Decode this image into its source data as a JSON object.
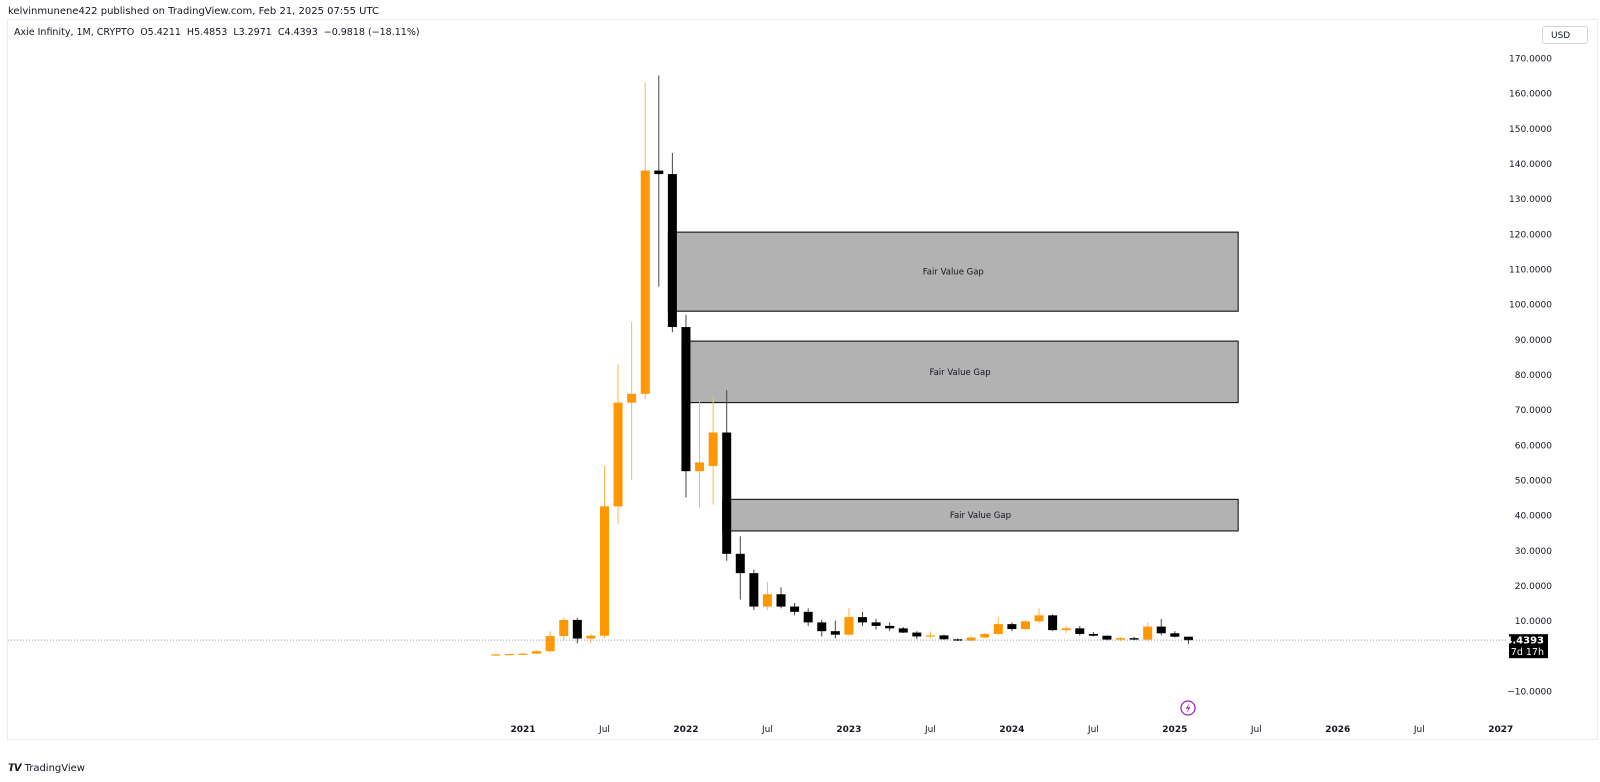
{
  "header": {
    "publish_line": "kelvinmunene422 published on TradingView.com, Feb 21, 2025 07:55 UTC"
  },
  "legend": {
    "symbol": "Axie Infinity, 1M, CRYPTO",
    "open": "O5.4211",
    "high": "H5.4853",
    "low": "L3.2971",
    "close": "C4.4393",
    "change": "−0.9818 (−18.11%)"
  },
  "currency_button": "USD",
  "last_price": {
    "value_label": "4.4393",
    "countdown": "7d 17h",
    "value": 4.4393
  },
  "footer": {
    "brand": "TradingView"
  },
  "colors": {
    "up": "#ff9800",
    "down": "#000000",
    "zone_fill": "#b2b2b2",
    "zone_border": "#000000"
  },
  "chart_data": {
    "type": "candlestick",
    "interval": "1M",
    "y_axis_labels": [
      "170.0000",
      "160.0000",
      "150.0000",
      "140.0000",
      "130.0000",
      "120.0000",
      "110.0000",
      "100.0000",
      "90.0000",
      "80.0000",
      "70.0000",
      "60.0000",
      "50.0000",
      "40.0000",
      "30.0000",
      "20.0000",
      "10.0000",
      "−10.0000"
    ],
    "y_axis_values": [
      170,
      160,
      150,
      140,
      130,
      120,
      110,
      100,
      90,
      80,
      70,
      60,
      50,
      40,
      30,
      20,
      10,
      -10
    ],
    "ylim": [
      -14,
      174
    ],
    "x_axis_labels": [
      "2021",
      "Jul",
      "2022",
      "Jul",
      "2023",
      "Jul",
      "2024",
      "Jul",
      "2025",
      "Jul",
      "2026",
      "Jul",
      "2027"
    ],
    "x_axis_months": [
      "2021-01",
      "2021-07",
      "2022-01",
      "2022-07",
      "2023-01",
      "2023-07",
      "2024-01",
      "2024-07",
      "2025-01",
      "2025-07",
      "2026-01",
      "2026-07",
      "2027-01"
    ],
    "fair_value_gaps": [
      {
        "label": "Fair Value Gap",
        "start": "2021-12",
        "end": "2025-05",
        "top": 120.5,
        "bottom": 98
      },
      {
        "label": "Fair Value Gap",
        "start": "2022-01",
        "end": "2025-05",
        "top": 89.5,
        "bottom": 72
      },
      {
        "label": "Fair Value Gap",
        "start": "2022-04",
        "end": "2025-05",
        "top": 44.5,
        "bottom": 35.5
      }
    ],
    "candles": [
      {
        "date": "2020-11",
        "o": 0.3,
        "h": 0.6,
        "l": 0.2,
        "c": 0.4
      },
      {
        "date": "2020-12",
        "o": 0.4,
        "h": 0.6,
        "l": 0.3,
        "c": 0.5
      },
      {
        "date": "2021-01",
        "o": 0.5,
        "h": 0.8,
        "l": 0.4,
        "c": 0.6
      },
      {
        "date": "2021-02",
        "o": 0.6,
        "h": 1.5,
        "l": 0.5,
        "c": 1.3
      },
      {
        "date": "2021-03",
        "o": 1.3,
        "h": 7.0,
        "l": 1.0,
        "c": 5.6
      },
      {
        "date": "2021-04",
        "o": 5.6,
        "h": 11.0,
        "l": 4.5,
        "c": 10.2
      },
      {
        "date": "2021-05",
        "o": 10.2,
        "h": 10.8,
        "l": 3.5,
        "c": 4.9
      },
      {
        "date": "2021-06",
        "o": 4.9,
        "h": 6.3,
        "l": 3.5,
        "c": 5.7
      },
      {
        "date": "2021-07",
        "o": 5.7,
        "h": 54.0,
        "l": 5.0,
        "c": 42.5
      },
      {
        "date": "2021-08",
        "o": 42.5,
        "h": 83.0,
        "l": 37.5,
        "c": 72.0
      },
      {
        "date": "2021-09",
        "o": 72.0,
        "h": 95.0,
        "l": 50.0,
        "c": 74.5
      },
      {
        "date": "2021-10",
        "o": 74.5,
        "h": 163.0,
        "l": 73.0,
        "c": 138.0
      },
      {
        "date": "2021-11",
        "o": 138.0,
        "h": 165.0,
        "l": 105.0,
        "c": 137.0
      },
      {
        "date": "2021-12",
        "o": 137.0,
        "h": 143.0,
        "l": 92.0,
        "c": 93.5
      },
      {
        "date": "2022-01",
        "o": 93.5,
        "h": 97.0,
        "l": 45.0,
        "c": 52.5
      },
      {
        "date": "2022-02",
        "o": 52.5,
        "h": 73.0,
        "l": 42.0,
        "c": 55.0
      },
      {
        "date": "2022-03",
        "o": 54.0,
        "h": 73.5,
        "l": 43.0,
        "c": 63.5
      },
      {
        "date": "2022-04",
        "o": 63.5,
        "h": 75.5,
        "l": 27.0,
        "c": 29.0
      },
      {
        "date": "2022-05",
        "o": 29.0,
        "h": 34.0,
        "l": 16.0,
        "c": 23.5
      },
      {
        "date": "2022-06",
        "o": 23.5,
        "h": 24.5,
        "l": 13.0,
        "c": 14.0
      },
      {
        "date": "2022-07",
        "o": 14.0,
        "h": 21.0,
        "l": 13.0,
        "c": 17.5
      },
      {
        "date": "2022-08",
        "o": 17.5,
        "h": 19.5,
        "l": 13.5,
        "c": 14.0
      },
      {
        "date": "2022-09",
        "o": 14.0,
        "h": 15.0,
        "l": 11.5,
        "c": 12.5
      },
      {
        "date": "2022-10",
        "o": 12.5,
        "h": 13.5,
        "l": 8.5,
        "c": 9.5
      },
      {
        "date": "2022-11",
        "o": 9.5,
        "h": 10.2,
        "l": 5.5,
        "c": 7.0
      },
      {
        "date": "2022-12",
        "o": 7.0,
        "h": 10.0,
        "l": 5.0,
        "c": 6.0
      },
      {
        "date": "2023-01",
        "o": 6.0,
        "h": 13.5,
        "l": 5.8,
        "c": 11.0
      },
      {
        "date": "2023-02",
        "o": 11.0,
        "h": 12.5,
        "l": 8.5,
        "c": 9.5
      },
      {
        "date": "2023-03",
        "o": 9.5,
        "h": 10.5,
        "l": 7.5,
        "c": 8.5
      },
      {
        "date": "2023-04",
        "o": 8.5,
        "h": 9.5,
        "l": 7.0,
        "c": 7.8
      },
      {
        "date": "2023-05",
        "o": 7.8,
        "h": 8.2,
        "l": 6.5,
        "c": 6.6
      },
      {
        "date": "2023-06",
        "o": 6.6,
        "h": 7.0,
        "l": 4.8,
        "c": 5.5
      },
      {
        "date": "2023-07",
        "o": 5.5,
        "h": 7.0,
        "l": 5.0,
        "c": 5.8
      },
      {
        "date": "2023-08",
        "o": 5.8,
        "h": 6.0,
        "l": 4.5,
        "c": 4.7
      },
      {
        "date": "2023-09",
        "o": 4.7,
        "h": 4.9,
        "l": 4.2,
        "c": 4.3
      },
      {
        "date": "2023-10",
        "o": 4.3,
        "h": 5.5,
        "l": 4.1,
        "c": 5.2
      },
      {
        "date": "2023-11",
        "o": 5.2,
        "h": 6.5,
        "l": 5.0,
        "c": 6.2
      },
      {
        "date": "2023-12",
        "o": 6.2,
        "h": 11.0,
        "l": 6.0,
        "c": 9.0
      },
      {
        "date": "2024-01",
        "o": 9.0,
        "h": 9.5,
        "l": 7.0,
        "c": 7.6
      },
      {
        "date": "2024-02",
        "o": 7.6,
        "h": 10.0,
        "l": 7.3,
        "c": 9.8
      },
      {
        "date": "2024-03",
        "o": 9.8,
        "h": 13.5,
        "l": 9.2,
        "c": 11.5
      },
      {
        "date": "2024-04",
        "o": 11.5,
        "h": 11.8,
        "l": 7.0,
        "c": 7.3
      },
      {
        "date": "2024-05",
        "o": 7.3,
        "h": 8.5,
        "l": 6.5,
        "c": 7.8
      },
      {
        "date": "2024-06",
        "o": 7.8,
        "h": 8.5,
        "l": 5.8,
        "c": 6.2
      },
      {
        "date": "2024-07",
        "o": 6.2,
        "h": 6.8,
        "l": 5.5,
        "c": 5.7
      },
      {
        "date": "2024-08",
        "o": 5.7,
        "h": 5.8,
        "l": 4.3,
        "c": 4.6
      },
      {
        "date": "2024-09",
        "o": 4.6,
        "h": 5.3,
        "l": 4.2,
        "c": 5.0
      },
      {
        "date": "2024-10",
        "o": 5.0,
        "h": 5.4,
        "l": 4.4,
        "c": 4.6
      },
      {
        "date": "2024-11",
        "o": 4.6,
        "h": 9.5,
        "l": 4.2,
        "c": 8.3
      },
      {
        "date": "2024-12",
        "o": 8.3,
        "h": 10.5,
        "l": 5.8,
        "c": 6.4
      },
      {
        "date": "2025-01",
        "o": 6.4,
        "h": 7.0,
        "l": 5.2,
        "c": 5.42
      },
      {
        "date": "2025-02",
        "o": 5.4211,
        "h": 5.4853,
        "l": 3.2971,
        "c": 4.4393
      }
    ]
  }
}
